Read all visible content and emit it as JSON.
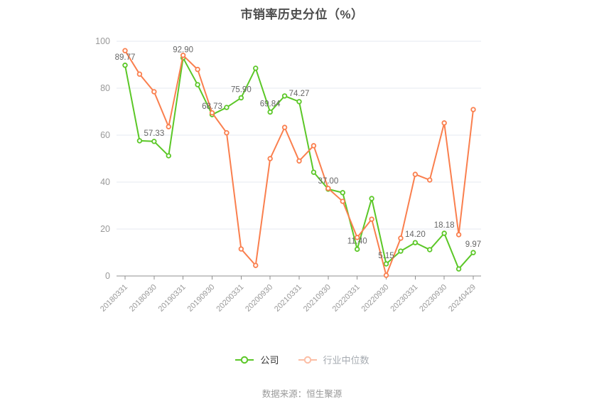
{
  "title": "市销率历史分位（%）",
  "footer": "数据来源：恒生聚源",
  "colors": {
    "company": "#5bc727",
    "industry": "#fa7f4e",
    "grid": "#e4e9f2",
    "axis": "#8f8f8f",
    "tick_label": "#999999",
    "point_label": "#666666",
    "title": "#4c4c4c"
  },
  "legend": {
    "items": [
      {
        "label": "公司",
        "color": "#5bc727",
        "muted": false
      },
      {
        "label": "行业中位数",
        "color": "#fa7f4e",
        "muted": true
      }
    ]
  },
  "chart_data": {
    "type": "line",
    "title": "市销率历史分位（%）",
    "n_points": 25,
    "tick_every": 2,
    "x_tick_labels": [
      "20180331",
      "20180930",
      "20190331",
      "20190930",
      "20200331",
      "20200930",
      "20210331",
      "20210930",
      "20220331",
      "20220930",
      "20230331",
      "20230930",
      "20240429"
    ],
    "ylim": [
      0,
      100
    ],
    "y_ticks": [
      0,
      20,
      40,
      60,
      80,
      100
    ],
    "grid": true,
    "legend_position": "bottom",
    "series": [
      {
        "name": "公司",
        "color": "#5bc727",
        "values": [
          89.77,
          57.6,
          57.33,
          51.2,
          92.9,
          81.5,
          68.73,
          71.8,
          75.9,
          88.5,
          69.84,
          76.7,
          74.27,
          44.2,
          37,
          35.5,
          11.4,
          33,
          5.15,
          10.6,
          14.2,
          11.2,
          18.18,
          3,
          9.97
        ],
        "point_labels": [
          "89.77",
          null,
          "57.33",
          null,
          "92.90",
          null,
          "68.73",
          null,
          "75.90",
          null,
          "69.84",
          null,
          "74.27",
          null,
          "37.00",
          null,
          "11.40",
          null,
          "5.15",
          null,
          "14.20",
          null,
          "18.18",
          null,
          "9.97"
        ]
      },
      {
        "name": "行业中位数",
        "color": "#fa7f4e",
        "values": [
          96,
          86,
          78.5,
          63.6,
          94,
          88,
          69.5,
          61,
          11.5,
          4.5,
          50,
          63.3,
          49,
          55.5,
          37.3,
          31.8,
          16.4,
          24.2,
          0.3,
          16.1,
          43.3,
          40.9,
          65.2,
          17.6,
          70.9
        ],
        "point_labels": []
      }
    ]
  }
}
